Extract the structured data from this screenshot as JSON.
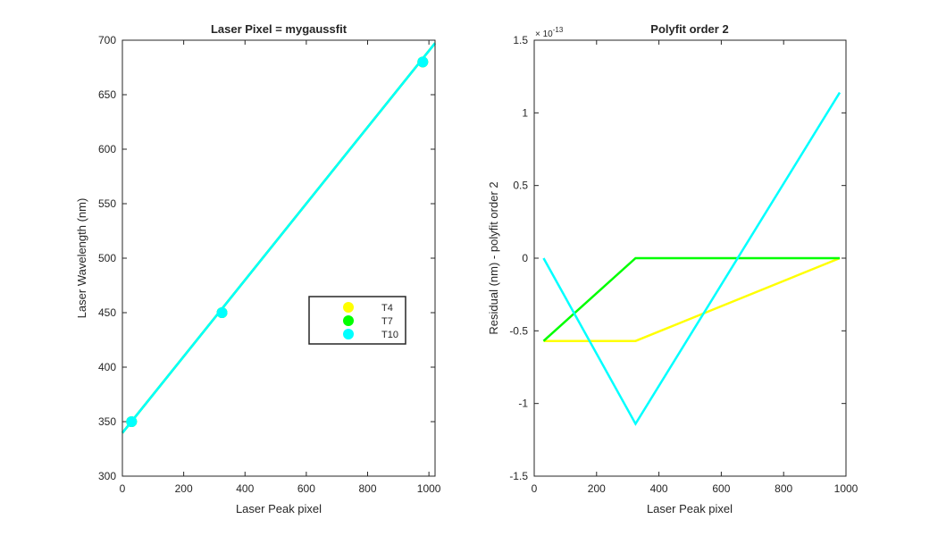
{
  "chart_data": [
    {
      "type": "line",
      "title": "Laser Pixel = mygaussfit",
      "xlabel": "Laser Peak pixel",
      "ylabel": "Laser Wavelength (nm)",
      "xlim": [
        0,
        1020
      ],
      "ylim": [
        300,
        700
      ],
      "xticks": [
        0,
        200,
        400,
        600,
        800,
        1000
      ],
      "yticks": [
        300,
        350,
        400,
        450,
        500,
        550,
        600,
        650,
        700
      ],
      "xtick_labels": [
        "0",
        "200",
        "400",
        "600",
        "800",
        "1000"
      ],
      "ytick_labels": [
        "300",
        "350",
        "400",
        "450",
        "500",
        "550",
        "600",
        "650",
        "700"
      ],
      "grid": false,
      "legend_position": "center-right",
      "legend": [
        "T4",
        "T7",
        "T10"
      ],
      "series": [
        {
          "name": "T4",
          "color": "#ffff00",
          "x": [
            30,
            325,
            980
          ],
          "y": [
            350,
            450,
            680
          ],
          "fit_x": [
            0,
            1020
          ],
          "fit_y": [
            339.7,
            697.3
          ]
        },
        {
          "name": "T7",
          "color": "#00ff00",
          "x": [
            30,
            325,
            980
          ],
          "y": [
            350,
            450,
            680
          ],
          "fit_x": [
            0,
            1020
          ],
          "fit_y": [
            339.7,
            697.3
          ]
        },
        {
          "name": "T10",
          "color": "#00ffff",
          "x": [
            30,
            325,
            980
          ],
          "y": [
            350,
            450,
            680
          ],
          "fit_x": [
            0,
            1020
          ],
          "fit_y": [
            339.7,
            697.3
          ]
        }
      ]
    },
    {
      "type": "line",
      "title": "Polyfit order 2",
      "xlabel": "Laser Peak pixel",
      "ylabel": "Residual (nm) - polyfit order 2",
      "exponent_label": "× 10",
      "exponent_power": "-13",
      "xlim": [
        0,
        1000
      ],
      "ylim": [
        -1.5,
        1.5
      ],
      "xticks": [
        0,
        200,
        400,
        600,
        800,
        1000
      ],
      "yticks": [
        -1.5,
        -1,
        -0.5,
        0,
        0.5,
        1,
        1.5
      ],
      "xtick_labels": [
        "0",
        "200",
        "400",
        "600",
        "800",
        "1000"
      ],
      "ytick_labels": [
        "-1.5",
        "-1",
        "-0.5",
        "0",
        "0.5",
        "1",
        "1.5"
      ],
      "grid": false,
      "series": [
        {
          "name": "T4",
          "color": "#ffff00",
          "x": [
            30,
            325,
            980
          ],
          "y": [
            -0.57,
            -0.57,
            0
          ]
        },
        {
          "name": "T7",
          "color": "#00ff00",
          "x": [
            30,
            325,
            980
          ],
          "y": [
            -0.57,
            0,
            0
          ]
        },
        {
          "name": "T10",
          "color": "#00ffff",
          "x": [
            30,
            325,
            980
          ],
          "y": [
            0,
            -1.14,
            1.14
          ]
        }
      ]
    }
  ]
}
